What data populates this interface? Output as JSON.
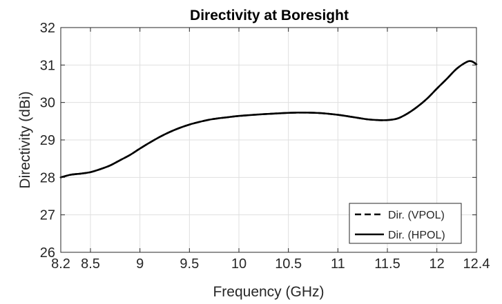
{
  "chart_data": {
    "type": "line",
    "title": "Directivity at Boresight",
    "xlabel": "Frequency (GHz)",
    "ylabel": "Directivity (dBi)",
    "xlim": [
      8.2,
      12.4
    ],
    "ylim": [
      26,
      32
    ],
    "xticks": [
      8.2,
      8.5,
      9,
      9.5,
      10,
      10.5,
      11,
      11.5,
      12,
      12.4
    ],
    "xtick_labels": [
      "8.2",
      "8.5",
      "9",
      "9.5",
      "10",
      "10.5",
      "11",
      "11.5",
      "12",
      "12.4"
    ],
    "yticks": [
      26,
      27,
      28,
      29,
      30,
      31,
      32
    ],
    "ytick_labels": [
      "26",
      "27",
      "28",
      "29",
      "30",
      "31",
      "32"
    ],
    "grid": true,
    "legend_position": "bottom-right",
    "series": [
      {
        "name": "Dir. (VPOL)",
        "style": "dashed",
        "color": "#000000",
        "x": [
          8.2,
          8.3,
          8.4,
          8.5,
          8.6,
          8.7,
          8.8,
          8.9,
          9.0,
          9.1,
          9.2,
          9.3,
          9.4,
          9.5,
          9.6,
          9.7,
          9.8,
          9.9,
          10.0,
          10.2,
          10.4,
          10.6,
          10.8,
          11.0,
          11.2,
          11.3,
          11.4,
          11.5,
          11.6,
          11.7,
          11.8,
          11.9,
          12.0,
          12.1,
          12.2,
          12.3,
          12.35,
          12.4
        ],
        "y": [
          28.0,
          28.07,
          28.1,
          28.14,
          28.22,
          28.32,
          28.46,
          28.6,
          28.77,
          28.93,
          29.08,
          29.21,
          29.32,
          29.41,
          29.48,
          29.54,
          29.58,
          29.61,
          29.64,
          29.68,
          29.71,
          29.73,
          29.72,
          29.67,
          29.59,
          29.55,
          29.53,
          29.53,
          29.57,
          29.7,
          29.88,
          30.1,
          30.37,
          30.63,
          30.9,
          31.08,
          31.1,
          31.02
        ]
      },
      {
        "name": "Dir. (HPOL)",
        "style": "solid",
        "color": "#000000",
        "x": [
          8.2,
          8.3,
          8.4,
          8.5,
          8.6,
          8.7,
          8.8,
          8.9,
          9.0,
          9.1,
          9.2,
          9.3,
          9.4,
          9.5,
          9.6,
          9.7,
          9.8,
          9.9,
          10.0,
          10.2,
          10.4,
          10.6,
          10.8,
          11.0,
          11.2,
          11.3,
          11.4,
          11.5,
          11.6,
          11.7,
          11.8,
          11.9,
          12.0,
          12.1,
          12.2,
          12.3,
          12.35,
          12.4
        ],
        "y": [
          28.0,
          28.07,
          28.1,
          28.14,
          28.22,
          28.32,
          28.46,
          28.6,
          28.77,
          28.93,
          29.08,
          29.21,
          29.32,
          29.41,
          29.48,
          29.54,
          29.58,
          29.61,
          29.64,
          29.68,
          29.71,
          29.73,
          29.72,
          29.67,
          29.59,
          29.55,
          29.53,
          29.53,
          29.57,
          29.7,
          29.88,
          30.1,
          30.37,
          30.63,
          30.9,
          31.08,
          31.1,
          31.02
        ]
      }
    ]
  }
}
